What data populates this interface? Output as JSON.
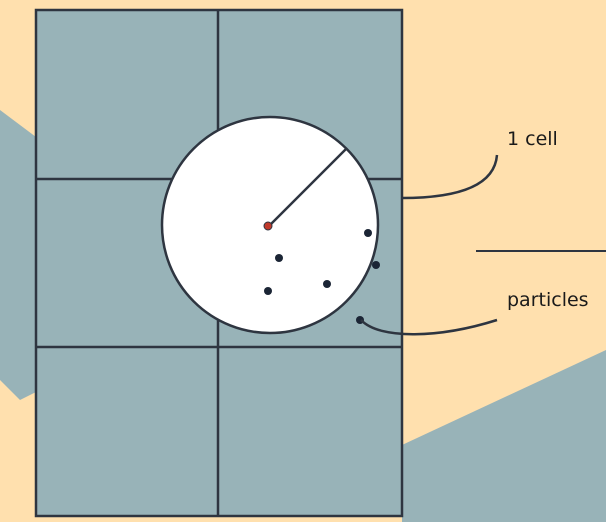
{
  "diagram": {
    "labels": {
      "cell": "1 cell",
      "particles": "particles"
    },
    "grid": {
      "rows": 3,
      "cols": 2
    },
    "particle_count": 6,
    "colors": {
      "background": "#FFE0AE",
      "cell_fill": "#98B3B8",
      "backdrop_shape": "#98B3B8",
      "grid_line": "#2E3540",
      "neighborhood_fill": "#FFFFFF",
      "particle": "#1B2535",
      "center_particle": "#C0392B"
    }
  }
}
